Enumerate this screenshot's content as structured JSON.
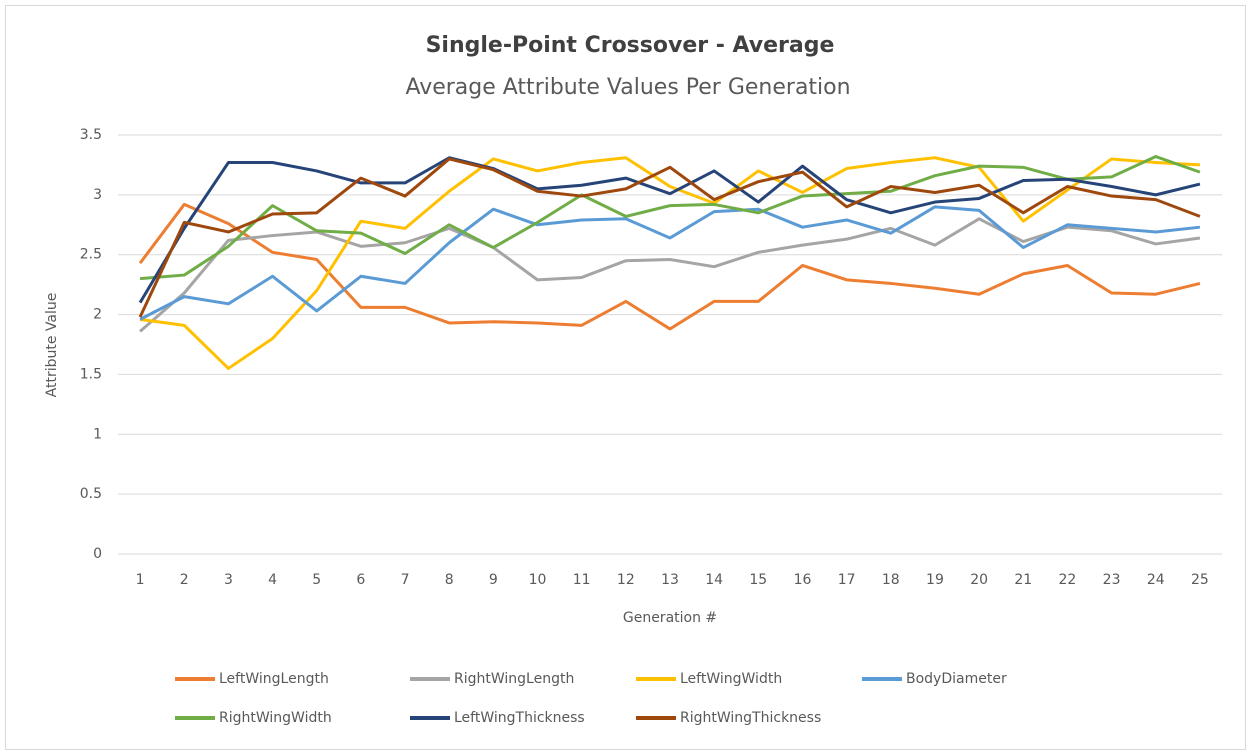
{
  "chart_data": {
    "type": "line",
    "title": "Single-Point Crossover - Average",
    "subtitle": "Average Attribute Values Per Generation",
    "x_label": "Generation #",
    "y_label": "Attribute Value",
    "categories": [
      1,
      2,
      3,
      4,
      5,
      6,
      7,
      8,
      9,
      10,
      11,
      12,
      13,
      14,
      15,
      16,
      17,
      18,
      19,
      20,
      21,
      22,
      23,
      24,
      25
    ],
    "ylim": [
      0,
      3.5
    ],
    "yticks": [
      0,
      0.5,
      1,
      1.5,
      2,
      2.5,
      3,
      3.5
    ],
    "grid": true,
    "legend": "bottom",
    "series": [
      {
        "name": "LeftWingLength",
        "color": "#ED7D31",
        "values": [
          2.43,
          2.92,
          2.76,
          2.52,
          2.46,
          2.06,
          2.06,
          1.93,
          1.94,
          1.93,
          1.91,
          2.11,
          1.88,
          2.11,
          2.11,
          2.41,
          2.29,
          2.26,
          2.22,
          2.17,
          2.34,
          2.41,
          2.18,
          2.17,
          2.26
        ]
      },
      {
        "name": "RightWingLength",
        "color": "#A5A5A5",
        "values": [
          1.86,
          2.18,
          2.62,
          2.66,
          2.69,
          2.57,
          2.6,
          2.72,
          2.56,
          2.29,
          2.31,
          2.45,
          2.46,
          2.4,
          2.52,
          2.58,
          2.63,
          2.72,
          2.58,
          2.8,
          2.61,
          2.73,
          2.7,
          2.59,
          2.64
        ]
      },
      {
        "name": "LeftWingWidth",
        "color": "#FFC000",
        "values": [
          1.96,
          1.91,
          1.55,
          1.8,
          2.2,
          2.78,
          2.72,
          3.03,
          3.3,
          3.2,
          3.27,
          3.31,
          3.07,
          2.93,
          3.2,
          3.02,
          3.22,
          3.27,
          3.31,
          3.23,
          2.78,
          3.04,
          3.3,
          3.27,
          3.25
        ]
      },
      {
        "name": "BodyDiameter",
        "color": "#5B9BD5",
        "values": [
          1.96,
          2.15,
          2.09,
          2.32,
          2.03,
          2.32,
          2.26,
          2.6,
          2.88,
          2.75,
          2.79,
          2.8,
          2.64,
          2.86,
          2.88,
          2.73,
          2.79,
          2.68,
          2.9,
          2.87,
          2.56,
          2.75,
          2.72,
          2.69,
          2.73
        ]
      },
      {
        "name": "RightWingWidth",
        "color": "#70AD47",
        "values": [
          2.3,
          2.33,
          2.57,
          2.91,
          2.7,
          2.68,
          2.51,
          2.75,
          2.56,
          2.77,
          3.0,
          2.82,
          2.91,
          2.92,
          2.85,
          2.99,
          3.01,
          3.03,
          3.16,
          3.24,
          3.23,
          3.13,
          3.15,
          3.32,
          3.19
        ]
      },
      {
        "name": "LeftWingThickness",
        "color": "#264478",
        "values": [
          2.1,
          2.72,
          3.27,
          3.27,
          3.2,
          3.1,
          3.1,
          3.31,
          3.22,
          3.05,
          3.08,
          3.14,
          3.01,
          3.2,
          2.94,
          3.24,
          2.96,
          2.85,
          2.94,
          2.97,
          3.12,
          3.13,
          3.07,
          3.0,
          3.09
        ]
      },
      {
        "name": "RightWingThickness",
        "color": "#9E480E",
        "values": [
          1.98,
          2.77,
          2.69,
          2.84,
          2.85,
          3.14,
          2.99,
          3.3,
          3.21,
          3.03,
          2.99,
          3.05,
          3.23,
          2.96,
          3.11,
          3.19,
          2.9,
          3.07,
          3.02,
          3.08,
          2.85,
          3.07,
          2.99,
          2.96,
          2.82
        ]
      }
    ]
  }
}
